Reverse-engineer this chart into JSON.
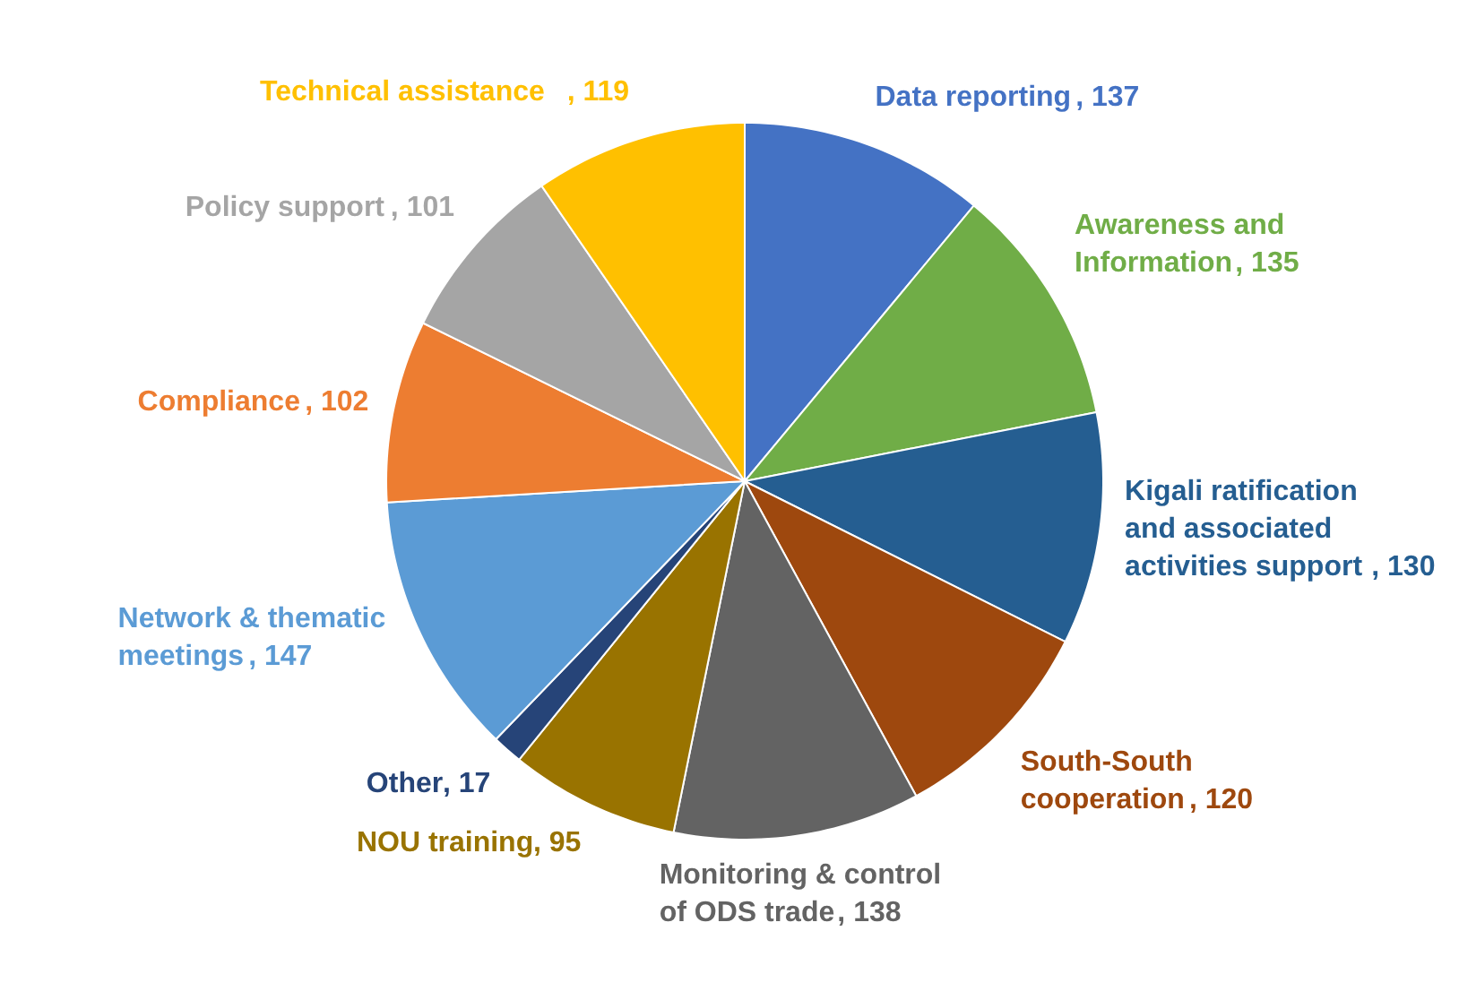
{
  "chart_data": {
    "type": "pie",
    "categories": [
      "Data reporting",
      "Awareness and Information",
      "Kigali ratification and associated activities support",
      "South-South cooperation",
      "Monitoring & control of ODS trade",
      "NOU training",
      "Other",
      "Network & thematic meetings",
      "Compliance",
      "Policy support",
      "Technical assistance"
    ],
    "values": [
      137,
      135,
      130,
      120,
      138,
      95,
      17,
      147,
      102,
      101,
      119
    ],
    "colors": [
      "#4472c4",
      "#70ad47",
      "#255e91",
      "#9e480e",
      "#636363",
      "#997300",
      "#264478",
      "#5b9bd5",
      "#ed7d31",
      "#a5a5a5",
      "#ffc000"
    ],
    "value_labels": [
      ", 137",
      ", 135",
      ", 130",
      ", 120",
      ", 138",
      ", 95",
      ", 17",
      ", 147",
      ", 102",
      ", 101",
      ", 119"
    ]
  }
}
